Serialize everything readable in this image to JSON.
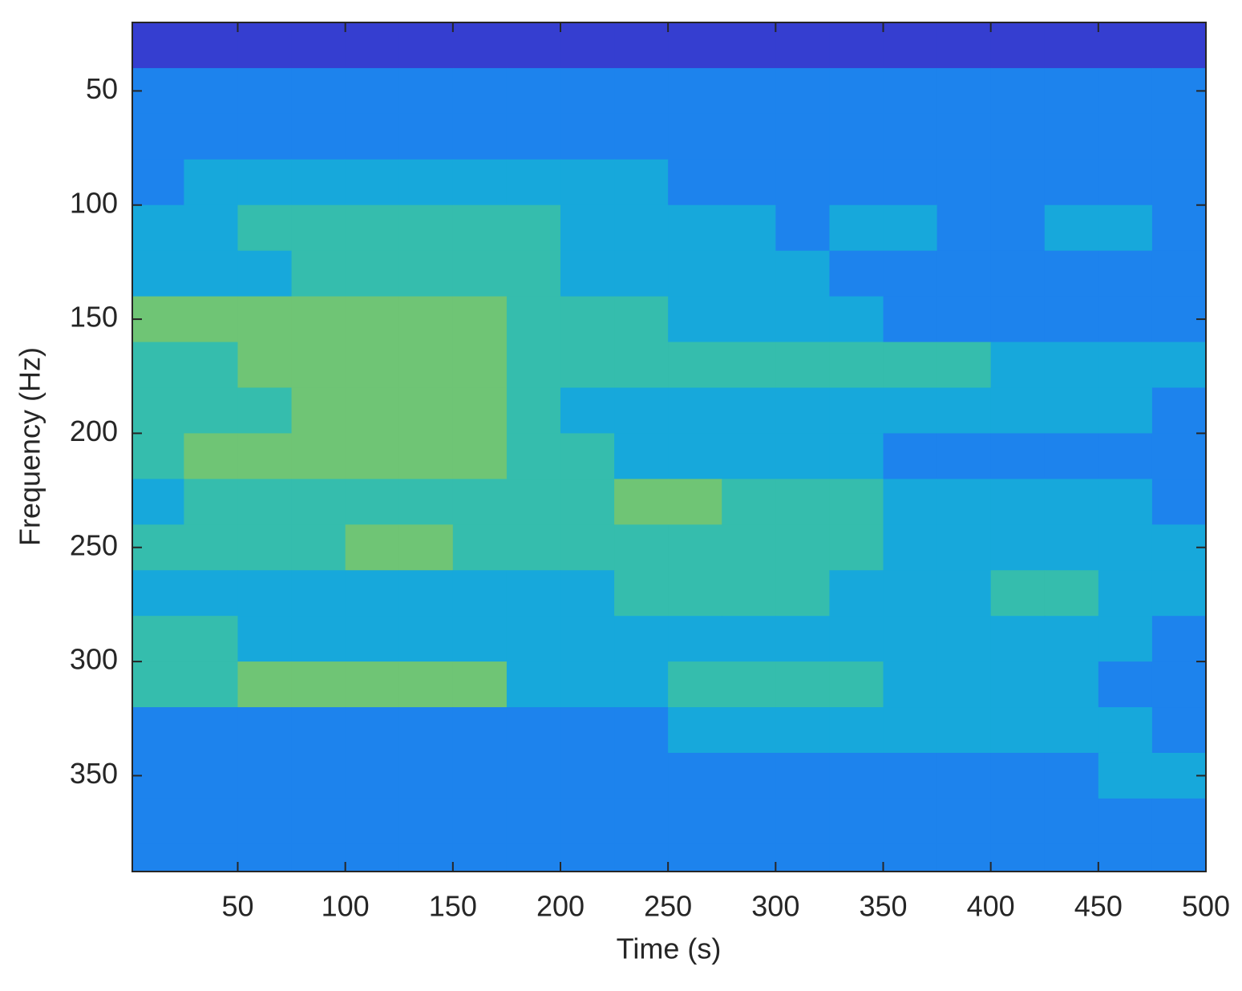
{
  "chart_data": {
    "type": "heatmap",
    "xlabel": "Time (s)",
    "ylabel": "Frequency (Hz)",
    "xlim": [
      1,
      500
    ],
    "ylim": [
      20,
      392
    ],
    "xticks": [
      50,
      100,
      150,
      200,
      250,
      300,
      350,
      400,
      450,
      500
    ],
    "yticks": [
      50,
      100,
      150,
      200,
      250,
      300,
      350
    ],
    "y_reversed": true,
    "clim": [
      0,
      7
    ],
    "colormap": [
      "#3e26a8",
      "#3248e0",
      "#1e7bf0",
      "#16b0d8",
      "#4cc68c",
      "#c8c23a"
    ],
    "x": [
      12.5,
      37.5,
      62.5,
      87.5,
      112.5,
      137.5,
      162.5,
      187.5,
      212.5,
      237.5,
      262.5,
      287.5,
      312.5,
      337.5,
      362.5,
      387.5,
      412.5,
      437.5,
      462.5,
      487.5
    ],
    "y": [
      30,
      50,
      70,
      90,
      110,
      130,
      150,
      170,
      190,
      210,
      230,
      250,
      270,
      290,
      310,
      330,
      350,
      370,
      390
    ],
    "values": [
      [
        1,
        1,
        1,
        1,
        1,
        1,
        1,
        1,
        1,
        1,
        1,
        1,
        1,
        1,
        1,
        1,
        1,
        1,
        1,
        1
      ],
      [
        3,
        3,
        3,
        3,
        3,
        3,
        3,
        3,
        3,
        3,
        3,
        3,
        3,
        3,
        3,
        3,
        3,
        3,
        3,
        3
      ],
      [
        3,
        3,
        3,
        3,
        3,
        3,
        3,
        3,
        3,
        3,
        3,
        3,
        3,
        3,
        3,
        3,
        3,
        3,
        3,
        3
      ],
      [
        3,
        4,
        4,
        4,
        4,
        4,
        4,
        4,
        4,
        4,
        3,
        3,
        3,
        3,
        3,
        3,
        3,
        3,
        3,
        3
      ],
      [
        4,
        4,
        5,
        5,
        5,
        5,
        5,
        5,
        4,
        4,
        4,
        4,
        3,
        4,
        4,
        3,
        3,
        4,
        4,
        3
      ],
      [
        4,
        4,
        4,
        5,
        5,
        5,
        5,
        5,
        4,
        4,
        4,
        4,
        4,
        3,
        3,
        3,
        3,
        3,
        3,
        3
      ],
      [
        6,
        6,
        6,
        6,
        6,
        6,
        6,
        5,
        5,
        5,
        4,
        4,
        4,
        4,
        3,
        3,
        3,
        3,
        3,
        3
      ],
      [
        5,
        5,
        6,
        6,
        6,
        6,
        6,
        5,
        5,
        5,
        5,
        5,
        5,
        5,
        5,
        5,
        4,
        4,
        4,
        4
      ],
      [
        5,
        5,
        5,
        6,
        6,
        6,
        6,
        5,
        4,
        4,
        4,
        4,
        4,
        4,
        4,
        4,
        4,
        4,
        4,
        3
      ],
      [
        5,
        6,
        6,
        6,
        6,
        6,
        6,
        5,
        5,
        4,
        4,
        4,
        4,
        4,
        3,
        3,
        3,
        3,
        3,
        3
      ],
      [
        4,
        5,
        5,
        5,
        5,
        5,
        5,
        5,
        5,
        6,
        6,
        5,
        5,
        5,
        4,
        4,
        4,
        4,
        4,
        3
      ],
      [
        5,
        5,
        5,
        5,
        6,
        6,
        5,
        5,
        5,
        5,
        5,
        5,
        5,
        5,
        4,
        4,
        4,
        4,
        4,
        4
      ],
      [
        4,
        4,
        4,
        4,
        4,
        4,
        4,
        4,
        4,
        5,
        5,
        5,
        5,
        4,
        4,
        4,
        5,
        5,
        4,
        4
      ],
      [
        5,
        5,
        4,
        4,
        4,
        4,
        4,
        4,
        4,
        4,
        4,
        4,
        4,
        4,
        4,
        4,
        4,
        4,
        4,
        3
      ],
      [
        5,
        5,
        6,
        6,
        6,
        6,
        6,
        4,
        4,
        4,
        5,
        5,
        5,
        5,
        4,
        4,
        4,
        4,
        3,
        3
      ],
      [
        3,
        3,
        3,
        3,
        3,
        3,
        3,
        3,
        3,
        3,
        4,
        4,
        4,
        4,
        4,
        4,
        4,
        4,
        4,
        3
      ],
      [
        3,
        3,
        3,
        3,
        3,
        3,
        3,
        3,
        3,
        3,
        3,
        3,
        3,
        3,
        3,
        3,
        3,
        3,
        4,
        4
      ],
      [
        3,
        3,
        3,
        3,
        3,
        3,
        3,
        3,
        3,
        3,
        3,
        3,
        3,
        3,
        3,
        3,
        3,
        3,
        3,
        3
      ],
      [
        3,
        3,
        3,
        3,
        3,
        3,
        3,
        3,
        3,
        3,
        3,
        3,
        3,
        3,
        3,
        3,
        3,
        3,
        3,
        3
      ]
    ]
  }
}
